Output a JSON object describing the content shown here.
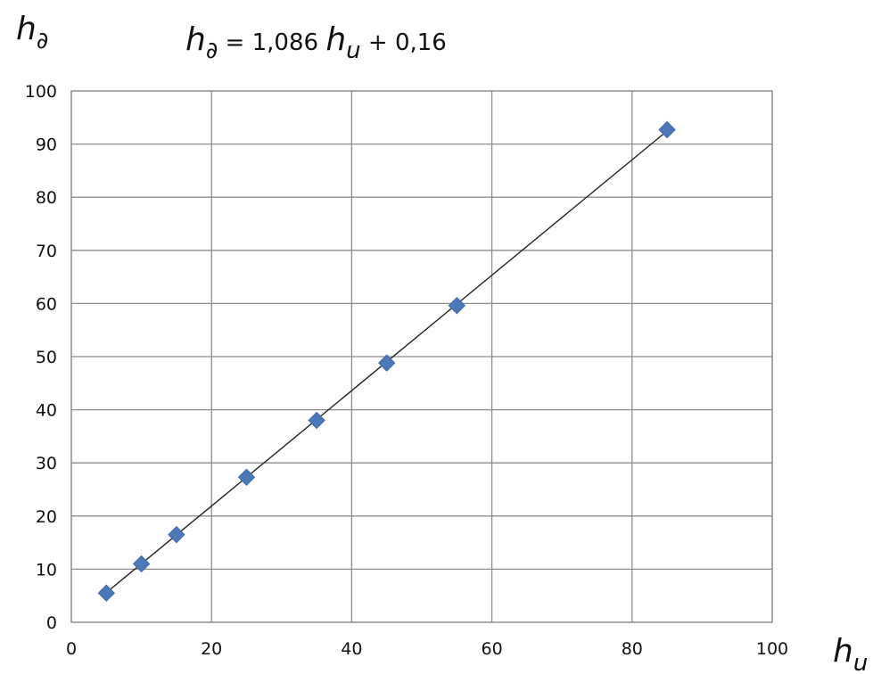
{
  "chart_data": {
    "type": "scatter",
    "title": "",
    "equation": {
      "lhs_base": "h",
      "lhs_sub": "∂",
      "equals": " = ",
      "coef": "1,086 ",
      "var_base": "h",
      "var_sub": "u",
      "rest": " + 0,16"
    },
    "xlabel": {
      "base": "h",
      "sub": "u"
    },
    "ylabel": {
      "base": "h",
      "sub": "∂"
    },
    "xlim": [
      0,
      100
    ],
    "ylim": [
      0,
      100
    ],
    "x_ticks": [
      0,
      20,
      40,
      60,
      80,
      100
    ],
    "y_ticks": [
      0,
      10,
      20,
      30,
      40,
      50,
      60,
      70,
      80,
      90,
      100
    ],
    "x_grid": [
      0,
      20,
      40,
      60,
      80,
      100
    ],
    "y_grid": [
      0,
      10,
      20,
      30,
      40,
      50,
      60,
      70,
      80,
      90,
      100
    ],
    "grid": true,
    "series": [
      {
        "marker": "diamond",
        "color": "#4a78b8",
        "x": [
          5,
          10,
          15,
          25,
          35,
          45,
          55,
          85
        ],
        "y": [
          5.5,
          11,
          16.5,
          27.3,
          38,
          48.8,
          59.6,
          92.7
        ]
      }
    ],
    "trendline": {
      "slope": 1.086,
      "intercept": 0.16,
      "x_range": [
        5,
        85
      ],
      "color": "#222222"
    }
  }
}
